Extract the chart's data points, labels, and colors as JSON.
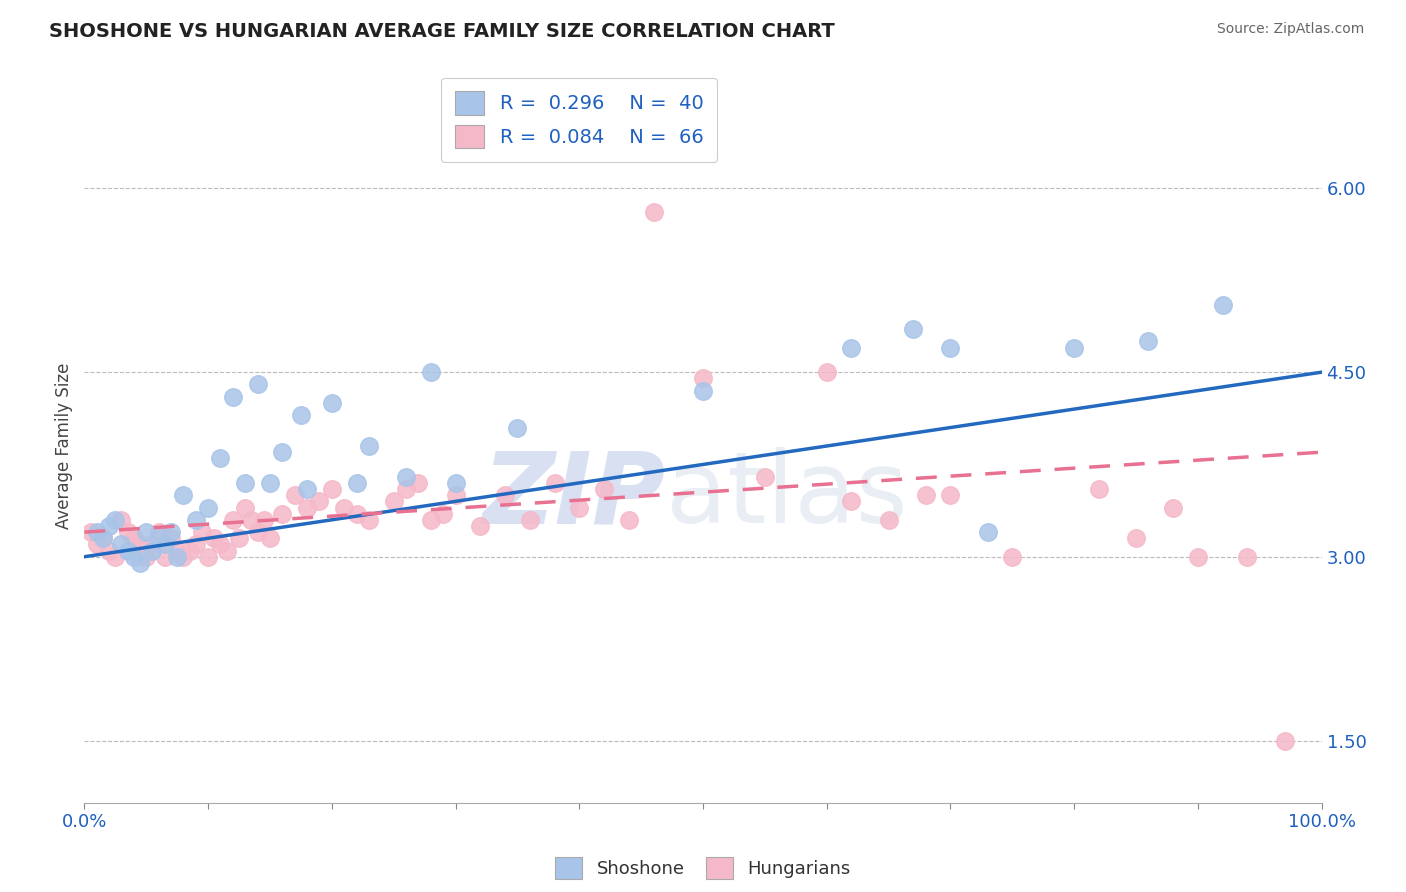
{
  "title": "SHOSHONE VS HUNGARIAN AVERAGE FAMILY SIZE CORRELATION CHART",
  "source": "Source: ZipAtlas.com",
  "ylabel": "Average Family Size",
  "xlim": [
    0.0,
    100.0
  ],
  "ylim": [
    1.0,
    6.8
  ],
  "yticks_right": [
    1.5,
    3.0,
    4.5,
    6.0
  ],
  "shoshone_color": "#a8c4e8",
  "hungarian_color": "#f5b8c8",
  "shoshone_line_color": "#2469c0",
  "hungarian_line_color": "#e87090",
  "background_color": "#ffffff",
  "watermark_zip": "ZIP",
  "watermark_atlas": "atlas",
  "shoshone_x": [
    1.0,
    1.5,
    2.0,
    2.5,
    3.0,
    3.5,
    4.0,
    4.5,
    5.0,
    5.5,
    6.0,
    6.5,
    7.0,
    7.5,
    8.0,
    9.0,
    10.0,
    11.0,
    12.0,
    13.0,
    14.0,
    15.0,
    16.0,
    17.5,
    18.0,
    20.0,
    22.0,
    23.0,
    26.0,
    28.0,
    30.0,
    35.0,
    50.0,
    62.0,
    67.0,
    70.0,
    73.0,
    80.0,
    86.0,
    92.0
  ],
  "shoshone_y": [
    3.2,
    3.15,
    3.25,
    3.3,
    3.1,
    3.05,
    3.0,
    2.95,
    3.2,
    3.05,
    3.15,
    3.1,
    3.2,
    3.0,
    3.5,
    3.3,
    3.4,
    3.8,
    4.3,
    3.6,
    4.4,
    3.6,
    3.85,
    4.15,
    3.55,
    4.25,
    3.6,
    3.9,
    3.65,
    4.5,
    3.6,
    4.05,
    4.35,
    4.7,
    4.85,
    4.7,
    3.2,
    4.7,
    4.75,
    5.05
  ],
  "hungarian_x": [
    0.5,
    1.0,
    1.5,
    2.0,
    2.5,
    3.0,
    3.5,
    4.0,
    4.5,
    5.0,
    5.5,
    6.0,
    6.5,
    7.0,
    7.5,
    8.0,
    8.5,
    9.0,
    9.5,
    10.0,
    10.5,
    11.0,
    11.5,
    12.0,
    12.5,
    13.0,
    13.5,
    14.0,
    14.5,
    15.0,
    16.0,
    17.0,
    18.0,
    19.0,
    20.0,
    21.0,
    22.0,
    23.0,
    25.0,
    26.0,
    27.0,
    28.0,
    29.0,
    30.0,
    32.0,
    34.0,
    36.0,
    38.0,
    40.0,
    42.0,
    44.0,
    46.0,
    50.0,
    55.0,
    60.0,
    62.0,
    65.0,
    68.0,
    70.0,
    75.0,
    82.0,
    85.0,
    88.0,
    90.0,
    94.0,
    97.0
  ],
  "hungarian_y": [
    3.2,
    3.1,
    3.15,
    3.05,
    3.0,
    3.3,
    3.2,
    3.15,
    3.1,
    3.0,
    3.1,
    3.2,
    3.0,
    3.15,
    3.05,
    3.0,
    3.05,
    3.1,
    3.2,
    3.0,
    3.15,
    3.1,
    3.05,
    3.3,
    3.15,
    3.4,
    3.3,
    3.2,
    3.3,
    3.15,
    3.35,
    3.5,
    3.4,
    3.45,
    3.55,
    3.4,
    3.35,
    3.3,
    3.45,
    3.55,
    3.6,
    3.3,
    3.35,
    3.5,
    3.25,
    3.5,
    3.3,
    3.6,
    3.4,
    3.55,
    3.3,
    5.8,
    4.45,
    3.65,
    4.5,
    3.45,
    3.3,
    3.5,
    3.5,
    3.0,
    3.55,
    3.15,
    3.4,
    3.0,
    3.0,
    1.5
  ],
  "trend_shoshone_x0": 0.0,
  "trend_shoshone_y0": 3.0,
  "trend_shoshone_x1": 100.0,
  "trend_shoshone_y1": 4.5,
  "trend_hungarian_x0": 0.0,
  "trend_hungarian_y0": 3.2,
  "trend_hungarian_x1": 100.0,
  "trend_hungarian_y1": 3.85
}
